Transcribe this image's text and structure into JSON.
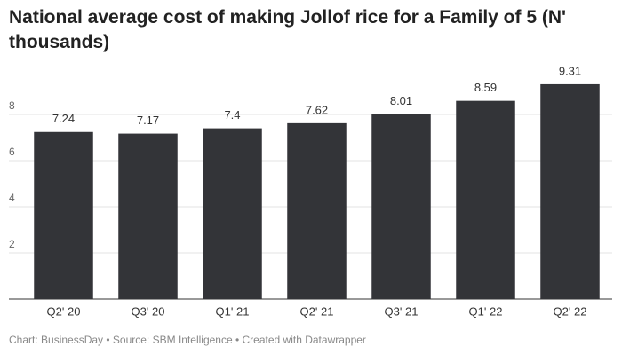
{
  "chart_data": {
    "type": "bar",
    "title": "National average cost of making Jollof rice for a Family of 5 (N' thousands)",
    "categories": [
      "Q2' 20",
      "Q3' 20",
      "Q1' 21",
      "Q2' 21",
      "Q3' 21",
      "Q1' 22",
      "Q2' 22"
    ],
    "values": [
      7.24,
      7.17,
      7.4,
      7.62,
      8.01,
      8.59,
      9.31
    ],
    "color": "#333438",
    "ylim": [
      0,
      9.5
    ],
    "yticks": [
      2,
      4,
      6,
      8
    ],
    "grid": true,
    "footer": "Chart: BusinessDay • Source: SBM Intelligence • Created with Datawrapper"
  }
}
